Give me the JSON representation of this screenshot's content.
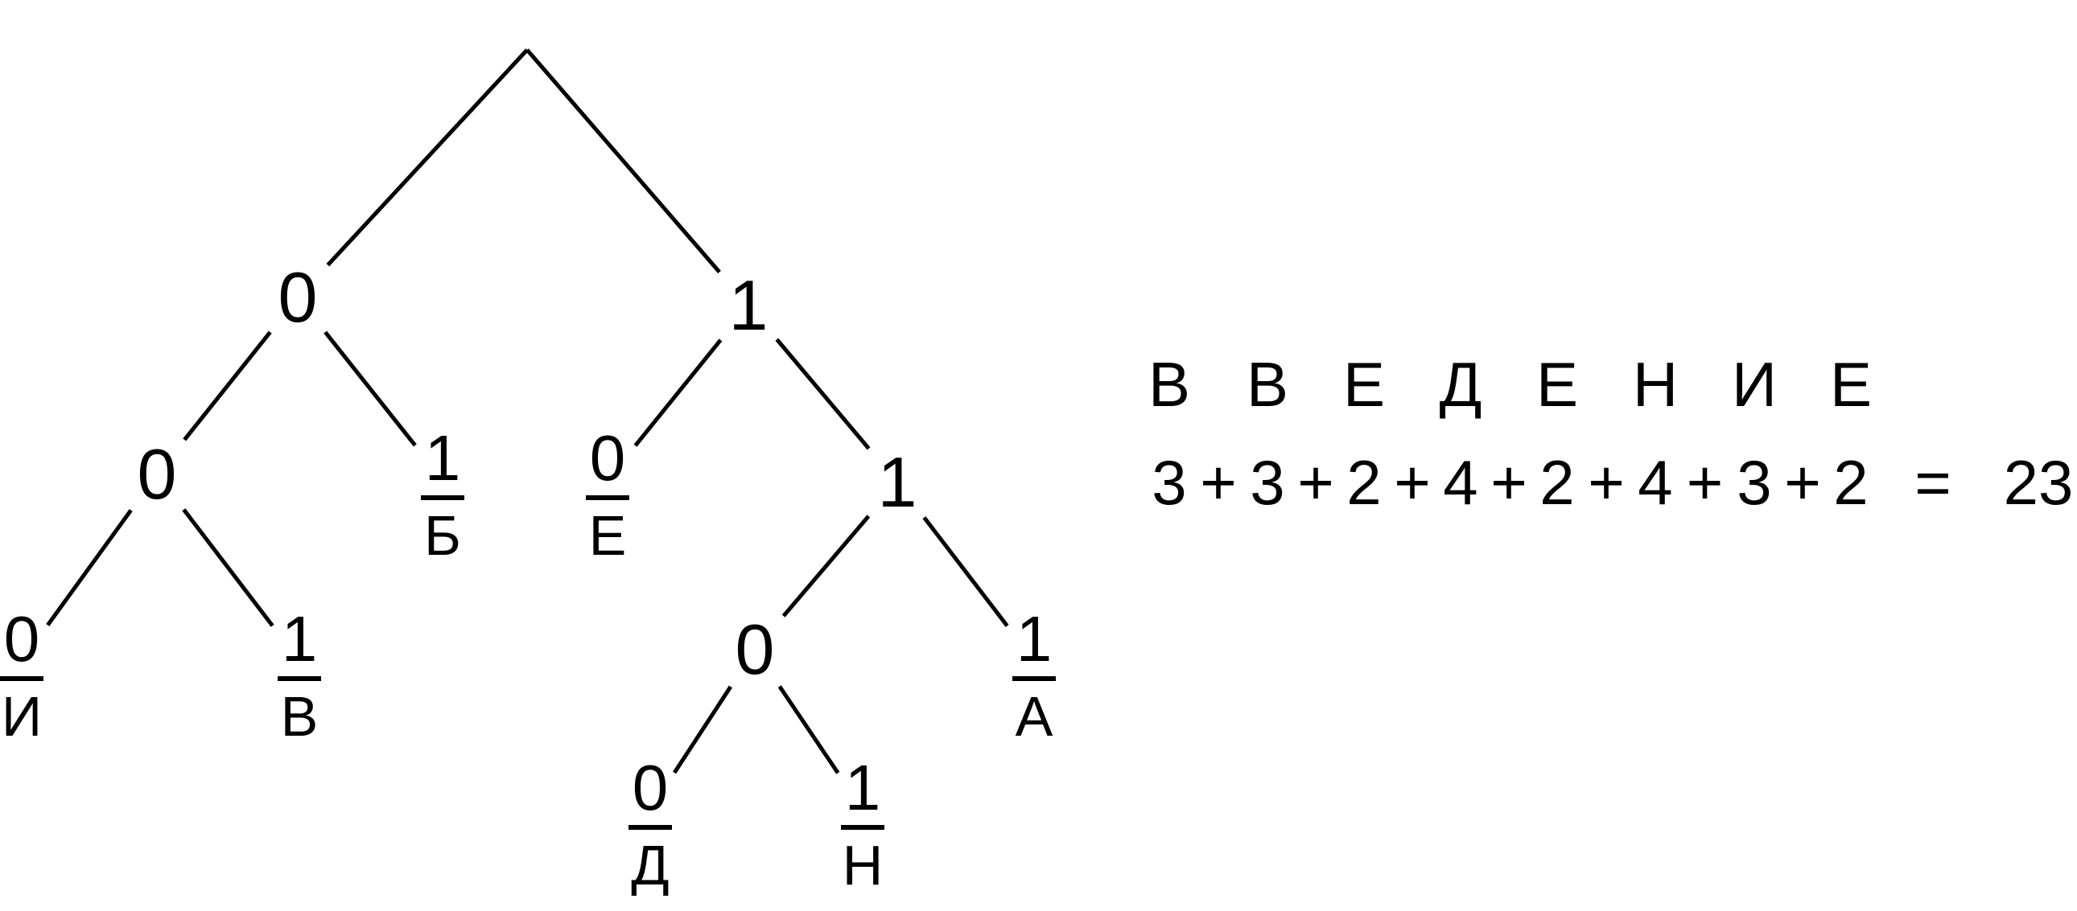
{
  "tree": {
    "nodes": [
      {
        "id": "n0",
        "bit": "0"
      },
      {
        "id": "n1",
        "bit": "1"
      },
      {
        "id": "n00",
        "bit": "0"
      },
      {
        "id": "n01",
        "bit": "1",
        "letter": "Б"
      },
      {
        "id": "n10",
        "bit": "0",
        "letter": "Е"
      },
      {
        "id": "n11",
        "bit": "1"
      },
      {
        "id": "n000",
        "bit": "0",
        "letter": "И"
      },
      {
        "id": "n001",
        "bit": "1",
        "letter": "В"
      },
      {
        "id": "n110",
        "bit": "0"
      },
      {
        "id": "n111",
        "bit": "1",
        "letter": "А"
      },
      {
        "id": "n1100",
        "bit": "0",
        "letter": "Д"
      },
      {
        "id": "n1101",
        "bit": "1",
        "letter": "Н"
      }
    ],
    "edges": [
      [
        "root",
        "n0"
      ],
      [
        "root",
        "n1"
      ],
      [
        "n0",
        "n00"
      ],
      [
        "n0",
        "n01"
      ],
      [
        "n1",
        "n10"
      ],
      [
        "n1",
        "n11"
      ],
      [
        "n00",
        "n000"
      ],
      [
        "n00",
        "n001"
      ],
      [
        "n11",
        "n110"
      ],
      [
        "n11",
        "n111"
      ],
      [
        "n110",
        "n1100"
      ],
      [
        "n110",
        "n1101"
      ]
    ]
  },
  "word": {
    "letters": [
      "В",
      "В",
      "Е",
      "Д",
      "Е",
      "Н",
      "И",
      "Е"
    ],
    "lengths": [
      "3",
      "3",
      "2",
      "4",
      "2",
      "4",
      "3",
      "2"
    ],
    "equals": "=",
    "total": "23"
  }
}
